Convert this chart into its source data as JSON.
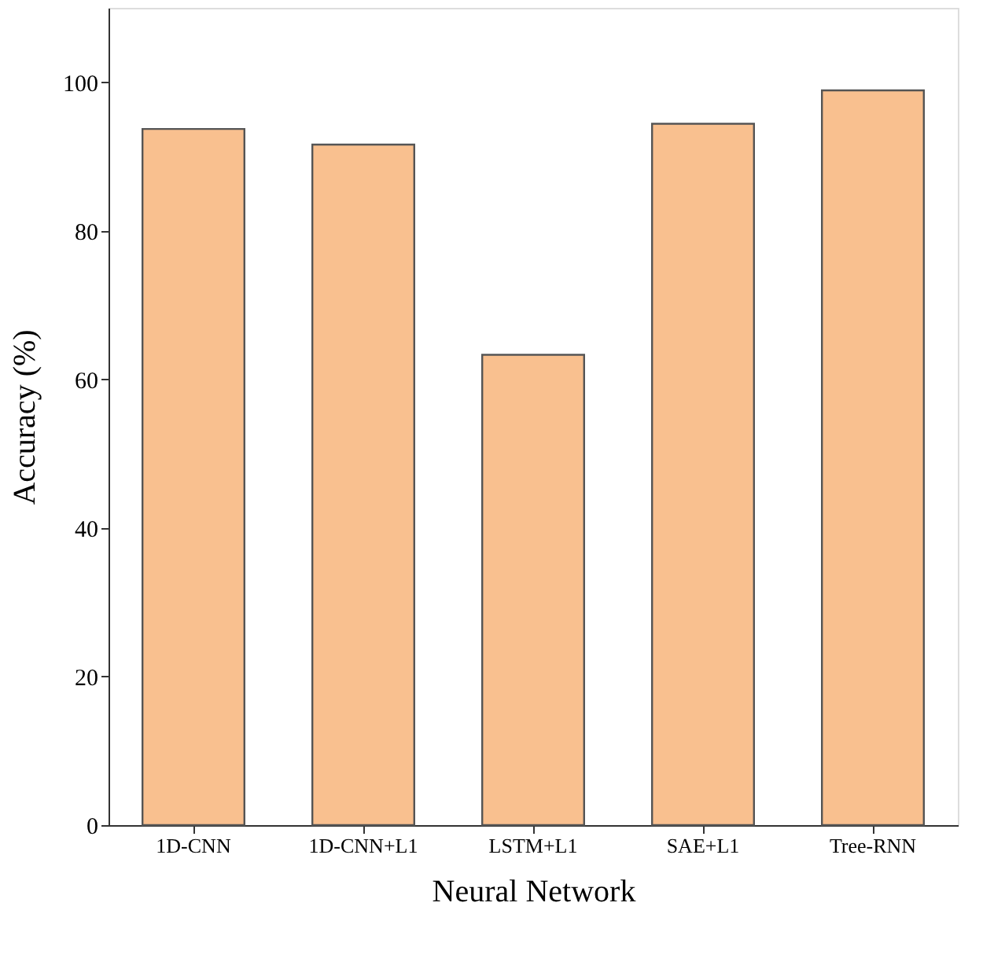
{
  "chart_data": {
    "type": "bar",
    "xlabel": "Neural Network",
    "ylabel": "Accuracy (%)",
    "categories": [
      "1D-CNN",
      "1D-CNN+L1",
      "LSTM+L1",
      "SAE+L1",
      "Tree-RNN"
    ],
    "values": [
      93.7,
      91.6,
      63.3,
      94.4,
      98.9
    ],
    "color": "#f9c08f",
    "ylim": [
      0,
      110
    ],
    "yticks": [
      0,
      20,
      40,
      60,
      80,
      100
    ],
    "grid": false
  }
}
